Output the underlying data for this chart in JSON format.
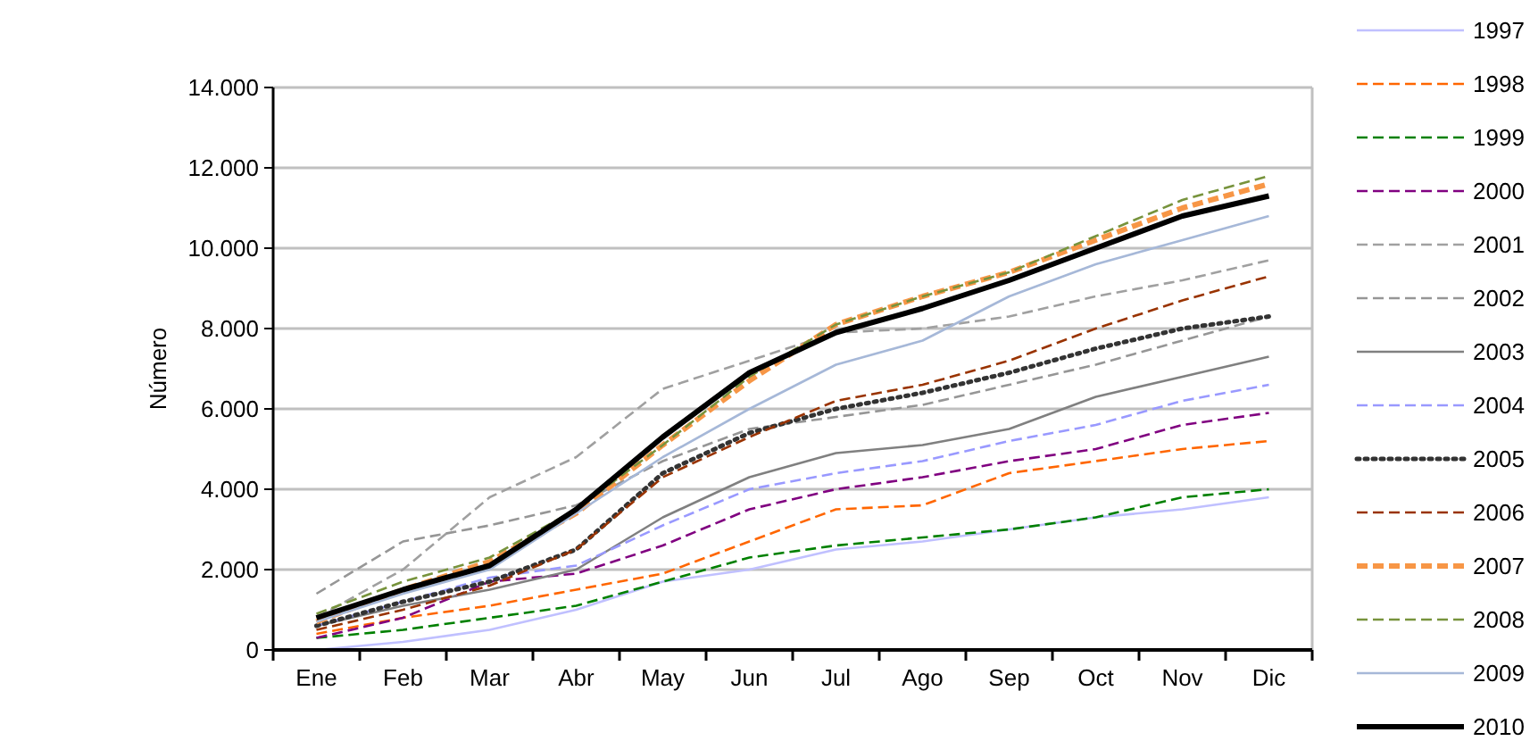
{
  "chart_data": {
    "type": "line",
    "ylabel": "Número",
    "categories": [
      "Ene",
      "Feb",
      "Mar",
      "Abr",
      "May",
      "Jun",
      "Jul",
      "Ago",
      "Sep",
      "Oct",
      "Nov",
      "Dic"
    ],
    "ylim": [
      0,
      14000
    ],
    "yticks": [
      0,
      {
        "value": 2000,
        "label": "2.000"
      },
      {
        "value": 4000,
        "label": "4.000"
      },
      {
        "value": 6000,
        "label": "6.000"
      },
      {
        "value": 8000,
        "label": "8.000"
      },
      {
        "value": 10000,
        "label": "10.000"
      },
      {
        "value": 12000,
        "label": "12.000"
      },
      {
        "value": 14000,
        "label": "14.000"
      }
    ],
    "grid": "y",
    "legend": "right",
    "marker": "none",
    "series": [
      {
        "name": "1997",
        "color": "#c0c0ff",
        "line_style": "solid",
        "values": [
          0,
          200,
          500,
          1000,
          1700,
          2000,
          2500,
          2700,
          3000,
          3300,
          3500,
          3800
        ]
      },
      {
        "name": "1998",
        "color": "#ff6600",
        "line_style": "dashed",
        "values": [
          400,
          800,
          1100,
          1500,
          1900,
          2700,
          3500,
          3600,
          4400,
          4700,
          5000,
          5200
        ]
      },
      {
        "name": "1999",
        "color": "#008000",
        "line_style": "dashed",
        "values": [
          300,
          500,
          800,
          1100,
          1700,
          2300,
          2600,
          2800,
          3000,
          3300,
          3800,
          4000
        ]
      },
      {
        "name": "2000",
        "color": "#800080",
        "line_style": "dashed",
        "values": [
          300,
          800,
          1700,
          1900,
          2600,
          3500,
          4000,
          4300,
          4700,
          5000,
          5600,
          5900
        ]
      },
      {
        "name": "2001",
        "color": "#a0a0a0",
        "line_style": "dashed",
        "values": [
          800,
          2000,
          3800,
          4800,
          6500,
          7200,
          7900,
          8000,
          8300,
          8800,
          9200,
          9700
        ]
      },
      {
        "name": "2002",
        "color": "#969696",
        "line_style": "dashed",
        "values": [
          1400,
          2700,
          3100,
          3600,
          4700,
          5500,
          5800,
          6100,
          6600,
          7100,
          7700,
          8300
        ]
      },
      {
        "name": "2003",
        "color": "#808080",
        "line_style": "solid",
        "values": [
          600,
          1100,
          1500,
          2000,
          3300,
          4300,
          4900,
          5100,
          5500,
          6300,
          6800,
          7300
        ]
      },
      {
        "name": "2004",
        "color": "#9999ff",
        "line_style": "dashed",
        "values": [
          600,
          1200,
          1800,
          2100,
          3100,
          4000,
          4400,
          4700,
          5200,
          5600,
          6200,
          6600
        ]
      },
      {
        "name": "2005",
        "color": "#333333",
        "line_style": "dotted",
        "values": [
          600,
          1200,
          1700,
          2500,
          4400,
          5400,
          6000,
          6400,
          6900,
          7500,
          8000,
          8300
        ]
      },
      {
        "name": "2006",
        "color": "#993300",
        "line_style": "dashed",
        "values": [
          500,
          1000,
          1600,
          2500,
          4300,
          5300,
          6200,
          6600,
          7200,
          8000,
          8700,
          9300
        ]
      },
      {
        "name": "2007",
        "color": "#f79646",
        "line_style": "dashed",
        "values": [
          700,
          1500,
          2200,
          3400,
          5100,
          6700,
          8100,
          8800,
          9400,
          10200,
          11000,
          11600
        ]
      },
      {
        "name": "2008",
        "color": "#77933c",
        "line_style": "dashed",
        "values": [
          900,
          1700,
          2300,
          3500,
          5100,
          6800,
          8100,
          8800,
          9400,
          10300,
          11200,
          11800
        ]
      },
      {
        "name": "2009",
        "color": "#a6b8d8",
        "line_style": "solid",
        "values": [
          700,
          1400,
          2000,
          3400,
          4800,
          6000,
          7100,
          7700,
          8800,
          9600,
          10200,
          10800
        ]
      },
      {
        "name": "2010",
        "color": "#000000",
        "line_style": "solid",
        "values": [
          800,
          1500,
          2100,
          3500,
          5300,
          6900,
          7900,
          8500,
          9200,
          10000,
          10800,
          11300
        ]
      }
    ]
  }
}
